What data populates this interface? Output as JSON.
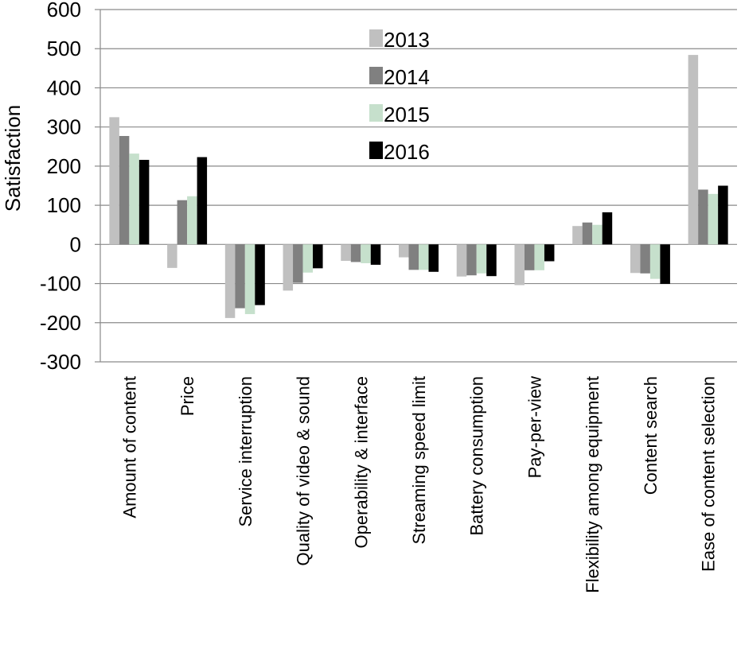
{
  "chart_data": {
    "type": "bar",
    "title": "",
    "xlabel": "",
    "ylabel": "Satisfaction",
    "ylim": [
      -300,
      600
    ],
    "yticks": [
      600,
      500,
      400,
      300,
      200,
      100,
      0,
      -100,
      -200,
      -300
    ],
    "grid": true,
    "legend_position": "top-center",
    "categories": [
      "Amount of content",
      "Price",
      "Service interruption",
      "Quality of video & sound",
      "Operability & interface",
      "Streaming speed limit",
      "Battery consumption",
      "Pay-per-view",
      "Flexibility among equipment",
      "Content search",
      "Ease of content selection"
    ],
    "series": [
      {
        "name": "2013",
        "color": "#c0c0c0",
        "values": [
          325,
          -60,
          -188,
          -118,
          -42,
          -33,
          -82,
          -104,
          47,
          -73,
          484
        ]
      },
      {
        "name": "2014",
        "color": "#808080",
        "values": [
          277,
          113,
          -163,
          -98,
          -45,
          -65,
          -79,
          -66,
          56,
          -74,
          140
        ]
      },
      {
        "name": "2015",
        "color": "#c6e0cc",
        "values": [
          232,
          123,
          -178,
          -72,
          -48,
          -65,
          -74,
          -66,
          50,
          -88,
          129
        ]
      },
      {
        "name": "2016",
        "color": "#000000",
        "values": [
          216,
          223,
          -155,
          -61,
          -52,
          -70,
          -81,
          -43,
          82,
          -101,
          150
        ]
      }
    ]
  }
}
